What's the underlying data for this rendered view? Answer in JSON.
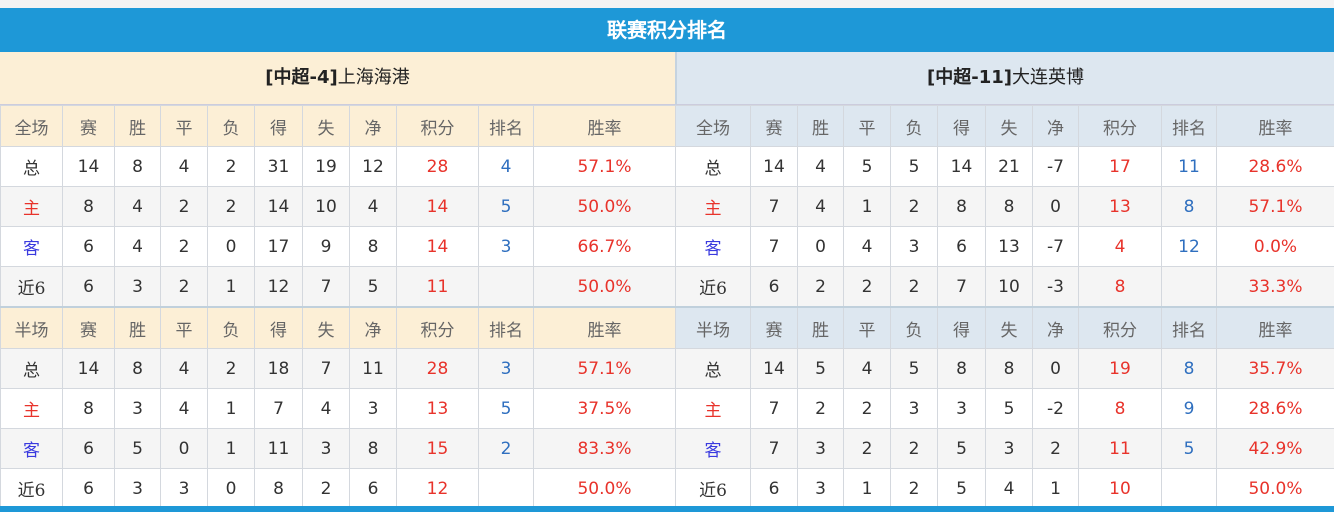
{
  "title": "联赛积分排名",
  "columns_full": [
    "全场",
    "赛",
    "胜",
    "平",
    "负",
    "得",
    "失",
    "净",
    "积分",
    "排名",
    "胜率"
  ],
  "columns_half": [
    "半场",
    "赛",
    "胜",
    "平",
    "负",
    "得",
    "失",
    "净",
    "积分",
    "排名",
    "胜率"
  ],
  "teams": [
    {
      "tag": "[中超-4]",
      "name": "上海海港",
      "full": [
        [
          "总",
          "14",
          "8",
          "4",
          "2",
          "31",
          "19",
          "12",
          "28",
          "4",
          "57.1%"
        ],
        [
          "主",
          "8",
          "4",
          "2",
          "2",
          "14",
          "10",
          "4",
          "14",
          "5",
          "50.0%"
        ],
        [
          "客",
          "6",
          "4",
          "2",
          "0",
          "17",
          "9",
          "8",
          "14",
          "3",
          "66.7%"
        ],
        [
          "近6",
          "6",
          "3",
          "2",
          "1",
          "12",
          "7",
          "5",
          "11",
          "",
          "50.0%"
        ]
      ],
      "half": [
        [
          "总",
          "14",
          "8",
          "4",
          "2",
          "18",
          "7",
          "11",
          "28",
          "3",
          "57.1%"
        ],
        [
          "主",
          "8",
          "3",
          "4",
          "1",
          "7",
          "4",
          "3",
          "13",
          "5",
          "37.5%"
        ],
        [
          "客",
          "6",
          "5",
          "0",
          "1",
          "11",
          "3",
          "8",
          "15",
          "2",
          "83.3%"
        ],
        [
          "近6",
          "6",
          "3",
          "3",
          "0",
          "8",
          "2",
          "6",
          "12",
          "",
          "50.0%"
        ]
      ]
    },
    {
      "tag": "[中超-11]",
      "name": "大连英博",
      "full": [
        [
          "总",
          "14",
          "4",
          "5",
          "5",
          "14",
          "21",
          "-7",
          "17",
          "11",
          "28.6%"
        ],
        [
          "主",
          "7",
          "4",
          "1",
          "2",
          "8",
          "8",
          "0",
          "13",
          "8",
          "57.1%"
        ],
        [
          "客",
          "7",
          "0",
          "4",
          "3",
          "6",
          "13",
          "-7",
          "4",
          "12",
          "0.0%"
        ],
        [
          "近6",
          "6",
          "2",
          "2",
          "2",
          "7",
          "10",
          "-3",
          "8",
          "",
          "33.3%"
        ]
      ],
      "half": [
        [
          "总",
          "14",
          "5",
          "4",
          "5",
          "8",
          "8",
          "0",
          "19",
          "8",
          "35.7%"
        ],
        [
          "主",
          "7",
          "2",
          "2",
          "3",
          "3",
          "5",
          "-2",
          "8",
          "9",
          "28.6%"
        ],
        [
          "客",
          "7",
          "3",
          "2",
          "2",
          "5",
          "3",
          "2",
          "11",
          "5",
          "42.9%"
        ],
        [
          "近6",
          "6",
          "3",
          "1",
          "2",
          "5",
          "4",
          "1",
          "10",
          "",
          "50.0%"
        ]
      ]
    }
  ]
}
